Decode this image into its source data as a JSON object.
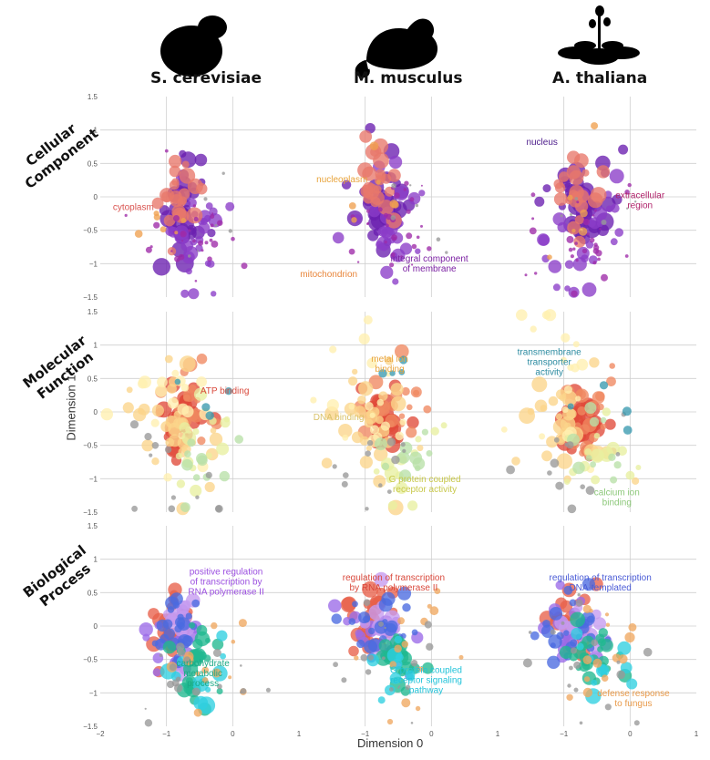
{
  "species": [
    "S. cerevisiae",
    "M. musculus",
    "A. thaliana"
  ],
  "rows": [
    "Cellular Component",
    "Molecular Function",
    "Biological Process"
  ],
  "chart_data": {
    "type": "scatter",
    "title": "",
    "xlabel": "Dimension 0",
    "ylabel": "Dimension 1",
    "xlim": [
      -2,
      1
    ],
    "ylim": [
      -1.5,
      1.5
    ],
    "xticks": [
      "−2",
      "−1",
      "0",
      "1"
    ],
    "yticks": [
      "1.5",
      "1",
      "0.5",
      "0",
      "−0.5",
      "−1",
      "−1.5"
    ],
    "panels": [
      {
        "row": 0,
        "col": 0,
        "annotations": [
          {
            "text": "cytoplasm",
            "x": -1.5,
            "y": -0.2,
            "color": "#d9534f"
          }
        ]
      },
      {
        "row": 0,
        "col": 1,
        "annotations": [
          {
            "text": "nucleoplasm",
            "x": -1.35,
            "y": 0.22,
            "color": "#e8a33a"
          },
          {
            "text": "integral component\nof membrane",
            "x": -0.03,
            "y": -0.97,
            "color": "#7a1fa2"
          },
          {
            "text": "mitochondrion",
            "x": -1.55,
            "y": -1.2,
            "color": "#e8853a"
          }
        ]
      },
      {
        "row": 0,
        "col": 2,
        "annotations": [
          {
            "text": "nucleus",
            "x": -1.33,
            "y": 0.78,
            "color": "#4b1a8a"
          },
          {
            "text": "extracellular\nregion",
            "x": 0.15,
            "y": -0.02,
            "color": "#b0226a"
          }
        ]
      },
      {
        "row": 1,
        "col": 0,
        "annotations": [
          {
            "text": "ATP binding",
            "x": -0.12,
            "y": 0.27,
            "color": "#d9483b"
          }
        ]
      },
      {
        "row": 1,
        "col": 1,
        "annotations": [
          {
            "text": "metal ion\nbinding",
            "x": -0.63,
            "y": 0.75,
            "color": "#e8a33a"
          },
          {
            "text": "DNA binding",
            "x": -1.4,
            "y": -0.12,
            "color": "#d9c26a"
          },
          {
            "text": "G protein coupled\nreceptor activity",
            "x": -0.1,
            "y": -1.05,
            "color": "#c8c84a"
          }
        ]
      },
      {
        "row": 1,
        "col": 2,
        "annotations": [
          {
            "text": "transmembrane\ntransporter\nactivity",
            "x": -1.22,
            "y": 0.85,
            "color": "#2a8aa0"
          },
          {
            "text": "calcium ion\nbinding",
            "x": -0.2,
            "y": -1.25,
            "color": "#8dc87a"
          }
        ]
      },
      {
        "row": 2,
        "col": 0,
        "annotations": [
          {
            "text": "positive regulation\nof transcription by\nRNA polymerase II",
            "x": -0.1,
            "y": 0.77,
            "color": "#9b4fe0"
          },
          {
            "text": "carbohydrate\nmetabolic\nprocess",
            "x": -0.45,
            "y": -0.6,
            "color": "#1aa884"
          }
        ]
      },
      {
        "row": 2,
        "col": 1,
        "annotations": [
          {
            "text": "regulation of transcription\nby RNA polymerase II",
            "x": -0.57,
            "y": 0.68,
            "color": "#d9483b"
          },
          {
            "text": "G protein coupled\nreceptor signaling\npathway",
            "x": -0.08,
            "y": -0.7,
            "color": "#22c3d9"
          }
        ]
      },
      {
        "row": 2,
        "col": 2,
        "annotations": [
          {
            "text": "regulation of transcription\nDNA-templated",
            "x": -0.45,
            "y": 0.68,
            "color": "#4a5bd6"
          },
          {
            "text": "defense response\nto fungus",
            "x": 0.05,
            "y": -1.05,
            "color": "#e89a4a"
          }
        ]
      }
    ],
    "series_colors": {
      "cc": [
        "#6a1fb0",
        "#8a3cc8",
        "#a05ad8",
        "#e8776a",
        "#f2a08a",
        "#9e2aa8",
        "#999999",
        "#f0a050"
      ],
      "mf": [
        "#e04a3a",
        "#f08860",
        "#fbd58a",
        "#fff0b0",
        "#e8f0a0",
        "#b8e0a8",
        "#999999",
        "#3a9ab0"
      ],
      "bp": [
        "#e8604a",
        "#9b6ae8",
        "#c59af0",
        "#4a6ae0",
        "#20b890",
        "#30d0e0",
        "#f0a860",
        "#999999"
      ]
    }
  }
}
